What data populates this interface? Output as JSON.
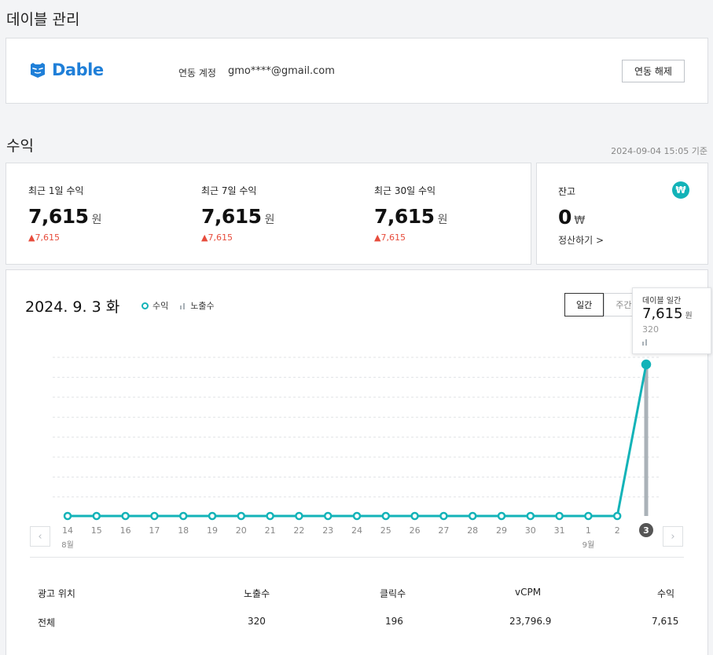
{
  "page_title": "데이블 관리",
  "partner": {
    "logo_text": "Dable",
    "account_label": "연동 계정",
    "account_value": "gmo****@gmail.com",
    "disconnect_label": "연동 해제"
  },
  "revenue": {
    "section_title": "수익",
    "timestamp": "2024-09-04 15:05 기준",
    "stats": [
      {
        "label": "최근 1일 수익",
        "value": "7,615",
        "unit": "원",
        "delta": "▲7,615"
      },
      {
        "label": "최근 7일 수익",
        "value": "7,615",
        "unit": "원",
        "delta": "▲7,615"
      },
      {
        "label": "최근 30일 수익",
        "value": "7,615",
        "unit": "원",
        "delta": "▲7,615"
      }
    ],
    "balance": {
      "label": "잔고",
      "value": "0",
      "unit": "₩",
      "icon_text": "₩",
      "settle_link": "정산하기 >"
    }
  },
  "chart": {
    "date_title": "2024. 9. 3 화",
    "legend_revenue": "수익",
    "legend_impressions": "노출수",
    "tabs": [
      "일간",
      "주간"
    ],
    "active_tab": "일간",
    "month_labels": [
      {
        "label": "8월",
        "at": "14"
      },
      {
        "label": "9월",
        "at": "1"
      }
    ],
    "tooltip": {
      "title": "데이블 일간",
      "value": "7,615",
      "unit": "원",
      "impressions": "320"
    },
    "colors": {
      "line": "#13b3b8",
      "bar": "#aab2b8",
      "selected": "#555555"
    }
  },
  "chart_data": {
    "type": "line",
    "x": [
      "14",
      "15",
      "16",
      "17",
      "18",
      "19",
      "20",
      "21",
      "22",
      "23",
      "24",
      "25",
      "26",
      "27",
      "28",
      "29",
      "30",
      "31",
      "1",
      "2",
      "3"
    ],
    "series": [
      {
        "name": "수익",
        "values": [
          0,
          0,
          0,
          0,
          0,
          0,
          0,
          0,
          0,
          0,
          0,
          0,
          0,
          0,
          0,
          0,
          0,
          0,
          0,
          0,
          7615
        ]
      },
      {
        "name": "노출수",
        "values": [
          0,
          0,
          0,
          0,
          0,
          0,
          0,
          0,
          0,
          0,
          0,
          0,
          0,
          0,
          0,
          0,
          0,
          0,
          0,
          0,
          320
        ]
      }
    ],
    "selected_x": "3",
    "grid": true
  },
  "table": {
    "headers": [
      "광고 위치",
      "노출수",
      "클릭수",
      "vCPM",
      "수익"
    ],
    "rows": [
      [
        "전체",
        "320",
        "196",
        "23,796.9",
        "7,615"
      ]
    ]
  }
}
